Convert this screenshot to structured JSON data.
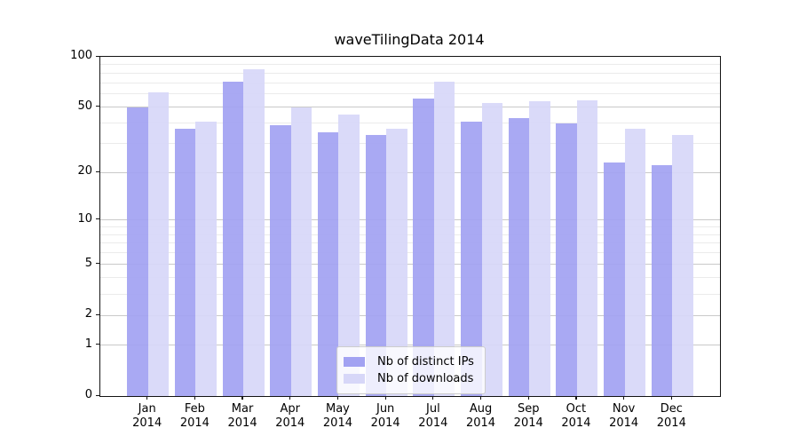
{
  "figure": {
    "title": "waveTilingData 2014"
  },
  "chart_data": {
    "type": "bar",
    "title": "waveTilingData 2014",
    "categories": [
      "Jan 2014",
      "Feb 2014",
      "Mar 2014",
      "Apr 2014",
      "May 2014",
      "Jun 2014",
      "Jul 2014",
      "Aug 2014",
      "Sep 2014",
      "Oct 2014",
      "Nov 2014",
      "Dec 2014"
    ],
    "series": [
      {
        "name": "Nb of distinct IPs",
        "color": "#a2a2f2",
        "values": [
          50,
          37,
          71,
          39,
          35,
          34,
          56,
          41,
          43,
          40,
          23,
          22
        ]
      },
      {
        "name": "Nb of downloads",
        "color": "#d7d7f8",
        "values": [
          61,
          41,
          84,
          50,
          45,
          37,
          71,
          53,
          54,
          55,
          37,
          34
        ]
      }
    ],
    "xlabel": "",
    "ylabel": "",
    "y_scale": "log1p",
    "ylim": [
      0,
      100
    ],
    "y_ticks": [
      0,
      1,
      2,
      5,
      10,
      20,
      50,
      100
    ],
    "y_minor_gridlines": [
      3,
      4,
      6,
      7,
      8,
      9,
      30,
      40,
      60,
      70,
      80,
      90
    ],
    "grid": true,
    "legend_position": "lower center"
  }
}
